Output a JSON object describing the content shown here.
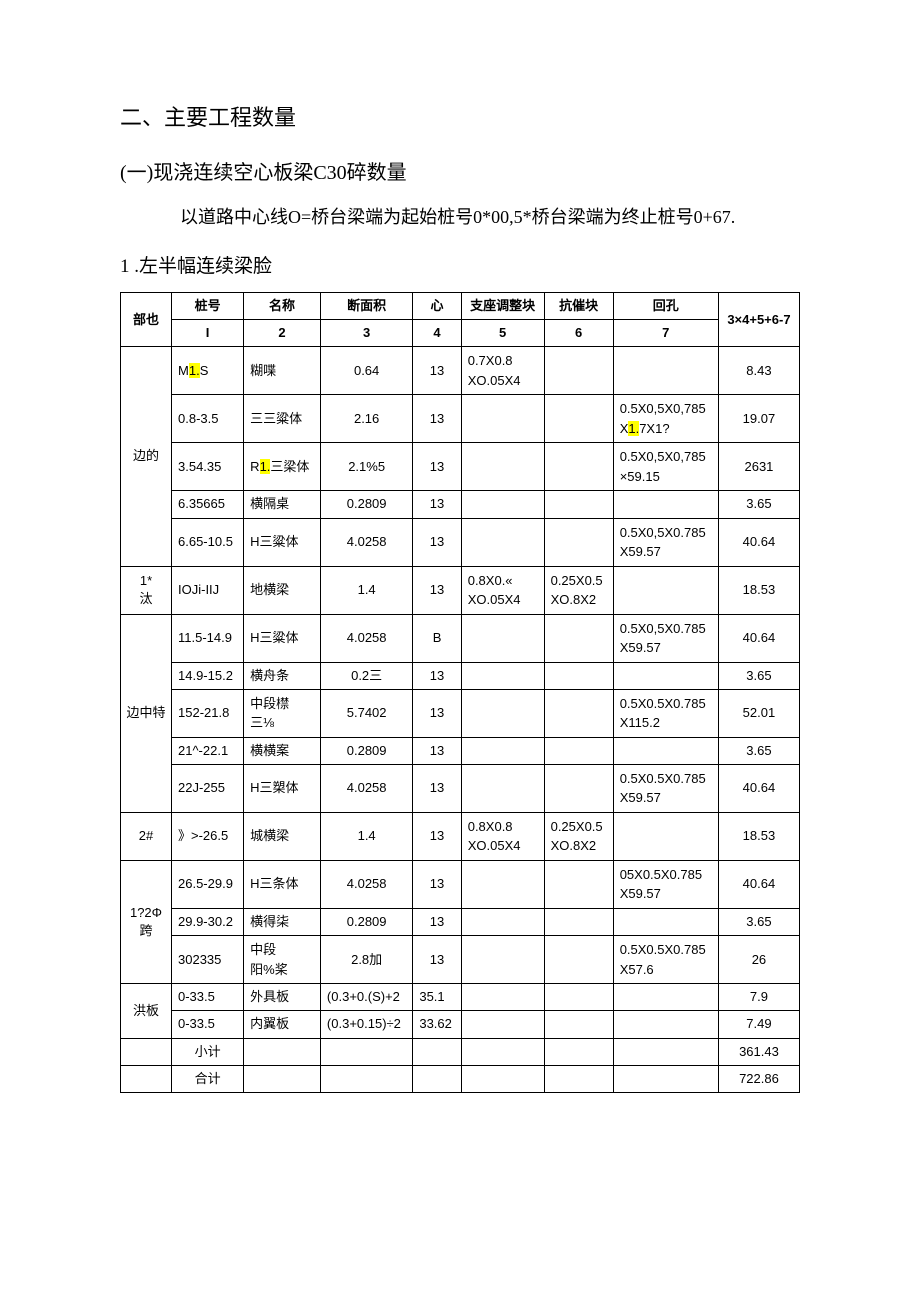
{
  "headings": {
    "h2": "二、主要工程数量",
    "sub": "(一)现浇连续空心板梁C30碎数量",
    "body": "以道路中心线O=桥台梁端为起始桩号0*00,5*桥台梁端为终止桩号0+67.",
    "num": "1 .左半幅连续梁脸"
  },
  "table": {
    "header": {
      "c1": "部也",
      "c2_top": "桩号",
      "c2_bot": "I",
      "c3_top": "名称",
      "c3_bot": "2",
      "c4_top": "断面积",
      "c4_bot": "3",
      "c5_top": "心",
      "c5_bot": "4",
      "c6_top": "支座调整块",
      "c6_bot": "5",
      "c7_top": "抗催块",
      "c7_bot": "6",
      "c8_top": "回孔",
      "c8_bot": "7",
      "c9": "3×4+5+6-7"
    },
    "rows": [
      {
        "section": "边的",
        "span": 5,
        "r": [
          {
            "zh": "M1.S",
            "zh_hl": "1.",
            "name": "糊喋",
            "area": "0.64",
            "xin": "13",
            "zd": "0.7X0.8\nXO.05X4",
            "kc": "",
            "hk": "",
            "val": "8.43"
          },
          {
            "zh": "0.8-3.5",
            "name": "三三粱体",
            "area": "2.16",
            "xin": "13",
            "zd": "",
            "kc": "",
            "hk": "0.5X0,5X0,785\nX1.7X1?",
            "hk_hl": "1.",
            "val": "19.07"
          },
          {
            "zh": "3.54.35",
            "name": "R1.三梁体",
            "name_hl": "1.",
            "area": "2.1%5",
            "xin": "13",
            "zd": "",
            "kc": "",
            "hk": "0.5X0,5X0,785\n×59.15",
            "val": "2631"
          },
          {
            "zh": "6.35665",
            "name": "横隔桌",
            "area": "0.2809",
            "xin": "13",
            "zd": "",
            "kc": "",
            "hk": "",
            "val": "3.65"
          },
          {
            "zh": "6.65-10.5",
            "name": "H三粱体",
            "area": "4.0258",
            "xin": "13",
            "zd": "",
            "kc": "",
            "hk": "0.5X0,5X0.785\nX59.57",
            "val": "40.64"
          }
        ]
      },
      {
        "section": "1*\n汰",
        "span": 1,
        "r": [
          {
            "zh": "IOJi-IIJ",
            "name": "地横梁",
            "area": "1.4",
            "xin": "13",
            "zd": "0.8X0.«\nXO.05X4",
            "kc": "0.25X0.5\nXO.8X2",
            "hk": "",
            "val": "18.53"
          }
        ]
      },
      {
        "section": "边中特",
        "span": 5,
        "blank_first": true,
        "r": [
          {
            "zh": "11.5-14.9",
            "name": "H三粱体",
            "area": "4.0258",
            "xin": "B",
            "zd": "",
            "kc": "",
            "hk": "0.5X0,5X0.785\nX59.57",
            "val": "40.64"
          },
          {
            "zh": "14.9-15.2",
            "name": "横舟条",
            "area": "0.2三",
            "xin": "13",
            "zd": "",
            "kc": "",
            "hk": "",
            "val": "3.65"
          },
          {
            "zh": "152-21.8",
            "name": "中段㯲\n三⅛",
            "area": "5.7402",
            "xin": "13",
            "zd": "",
            "kc": "",
            "hk": "0.5X0.5X0.785\nX115.2",
            "val": "52.01"
          },
          {
            "zh": "21^-22.1",
            "name": "横横案",
            "area": "0.2809",
            "xin": "13",
            "zd": "",
            "kc": "",
            "hk": "",
            "val": "3.65"
          },
          {
            "zh": "22J-255",
            "name": "H三槊体",
            "area": "4.0258",
            "xin": "13",
            "zd": "",
            "kc": "",
            "hk": "0.5X0.5X0.785\nX59.57",
            "val": "40.64"
          }
        ]
      },
      {
        "section": "2#",
        "span": 1,
        "r": [
          {
            "zh": "》>-26.5",
            "name": "城横梁",
            "area": "1.4",
            "xin": "13",
            "zd": "0.8X0.8\nXO.05X4",
            "kc": "0.25X0.5\nXO.8X2",
            "hk": "",
            "val": "18.53"
          }
        ]
      },
      {
        "section": "1?2Φ\n跨",
        "span": 3,
        "r": [
          {
            "zh": "26.5-29.9",
            "name": "H三条体",
            "area": "4.0258",
            "xin": "13",
            "zd": "",
            "kc": "",
            "hk": "05X0.5X0.785\nX59.57",
            "val": "40.64"
          },
          {
            "zh": "29.9-30.2",
            "name": "横得柒",
            "area": "0.2809",
            "xin": "13",
            "zd": "",
            "kc": "",
            "hk": "",
            "val": "3.65"
          },
          {
            "zh": "302335",
            "name": "中段\n阳%桨",
            "area": "2.8加",
            "xin": "13",
            "zd": "",
            "kc": "",
            "hk": "0.5X0.5X0.785\nX57.6",
            "val": "26"
          }
        ]
      },
      {
        "section": "洪板",
        "span": 2,
        "r": [
          {
            "zh": "0-33.5",
            "name": "外具板",
            "area": "(0.3+0.(S)+2",
            "xin": "35.1",
            "zd": "",
            "kc": "",
            "hk": "",
            "val": "7.9",
            "xin_left": true,
            "area_left": true
          },
          {
            "zh": "0-33.5",
            "name": "内翼板",
            "area": "(0.3+0.15)÷2",
            "xin": "33.62",
            "zd": "",
            "kc": "",
            "hk": "",
            "val": "7.49",
            "xin_left": true,
            "area_left": true
          }
        ]
      }
    ],
    "subtotal": {
      "label": "小计",
      "val": "361.43"
    },
    "total": {
      "label": "合计",
      "val": "722.86"
    }
  }
}
